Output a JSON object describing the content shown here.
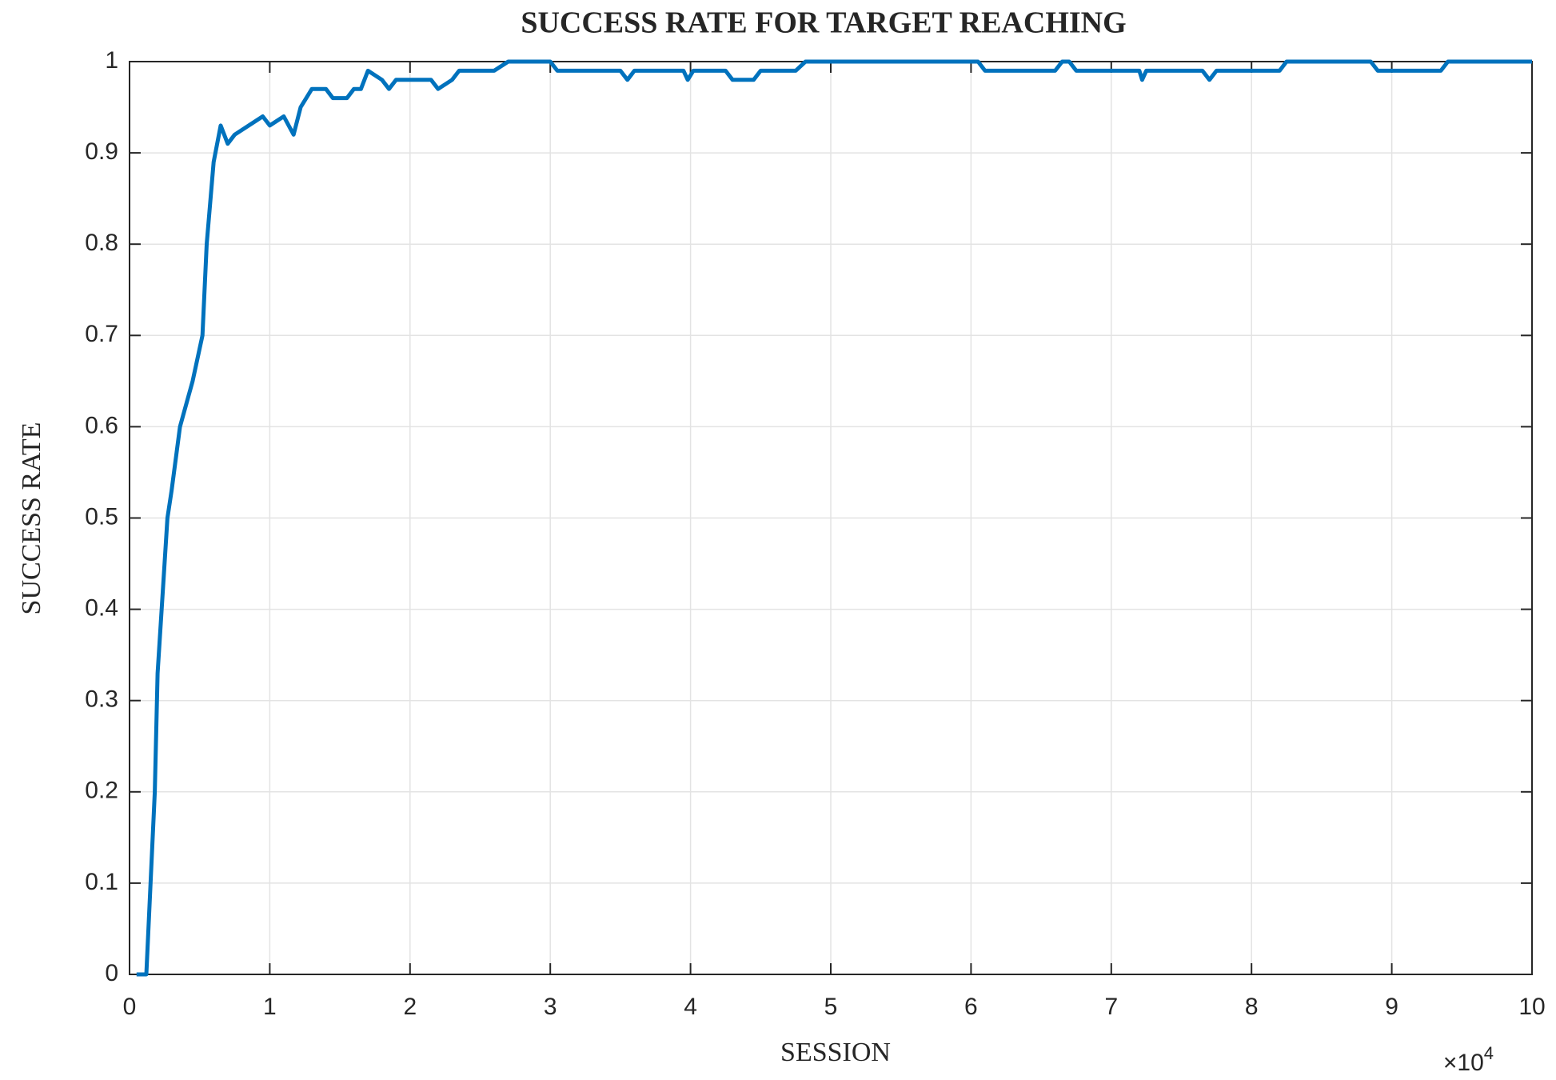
{
  "chart_data": {
    "type": "line",
    "title": "SUCCESS RATE FOR TARGET REACHING",
    "xlabel": "SESSION",
    "ylabel": "SUCCESS RATE",
    "x_multiplier": {
      "base": "×10",
      "exponent": "4"
    },
    "xlim": [
      0,
      10
    ],
    "xticks": [
      0,
      1,
      2,
      3,
      4,
      5,
      6,
      7,
      8,
      9,
      10
    ],
    "ylim": [
      0,
      1
    ],
    "yticks": [
      0,
      0.1,
      0.2,
      0.3,
      0.4,
      0.5,
      0.6,
      0.7,
      0.8,
      0.9,
      1
    ],
    "grid": true,
    "series": [
      {
        "name": "success rate",
        "color": "#0072bd",
        "x": [
          0.05,
          0.12,
          0.15,
          0.18,
          0.2,
          0.25,
          0.27,
          0.3,
          0.36,
          0.45,
          0.52,
          0.55,
          0.6,
          0.65,
          0.7,
          0.75,
          0.85,
          0.95,
          1.0,
          1.1,
          1.17,
          1.22,
          1.3,
          1.4,
          1.45,
          1.55,
          1.6,
          1.65,
          1.7,
          1.8,
          1.85,
          1.9,
          2.15,
          2.2,
          2.3,
          2.35,
          2.6,
          2.7,
          3.0,
          3.05,
          3.5,
          3.55,
          3.6,
          3.95,
          3.98,
          4.02,
          4.25,
          4.3,
          4.45,
          4.5,
          4.75,
          4.82,
          6.05,
          6.1,
          6.6,
          6.65,
          6.7,
          6.75,
          7.2,
          7.22,
          7.25,
          7.65,
          7.7,
          7.75,
          8.2,
          8.25,
          8.85,
          8.9,
          9.35,
          9.4,
          10
        ],
        "values": [
          0,
          0,
          0.1,
          0.2,
          0.33,
          0.45,
          0.5,
          0.53,
          0.6,
          0.65,
          0.7,
          0.8,
          0.89,
          0.93,
          0.91,
          0.92,
          0.93,
          0.94,
          0.93,
          0.94,
          0.92,
          0.95,
          0.97,
          0.97,
          0.96,
          0.96,
          0.97,
          0.97,
          0.99,
          0.98,
          0.97,
          0.98,
          0.98,
          0.97,
          0.98,
          0.99,
          0.99,
          1.0,
          1.0,
          0.99,
          0.99,
          0.98,
          0.99,
          0.99,
          0.98,
          0.99,
          0.99,
          0.98,
          0.98,
          0.99,
          0.99,
          1.0,
          1.0,
          0.99,
          0.99,
          1.0,
          1.0,
          0.99,
          0.99,
          0.98,
          0.99,
          0.99,
          0.98,
          0.99,
          0.99,
          1.0,
          1.0,
          0.99,
          0.99,
          1.0,
          1.0
        ]
      }
    ]
  }
}
